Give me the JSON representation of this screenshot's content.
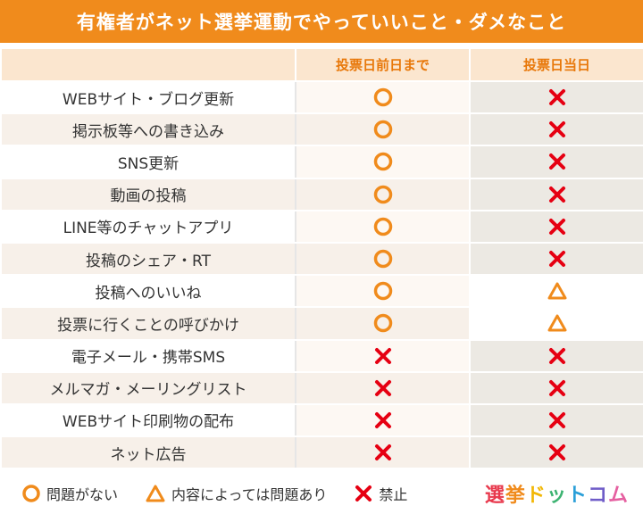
{
  "title": "有権者がネット選挙運動でやっていいこと・ダメなこと",
  "columns": {
    "item": "",
    "before": "投票日前日まで",
    "day": "投票日当日"
  },
  "rows": [
    {
      "label": "WEBサイト・ブログ更新",
      "before": "ok",
      "day": "ng"
    },
    {
      "label": "掲示板等への書き込み",
      "before": "ok",
      "day": "ng"
    },
    {
      "label": "SNS更新",
      "before": "ok",
      "day": "ng"
    },
    {
      "label": "動画の投稿",
      "before": "ok",
      "day": "ng"
    },
    {
      "label": "LINE等のチャットアプリ",
      "before": "ok",
      "day": "ng"
    },
    {
      "label": "投稿のシェア・RT",
      "before": "ok",
      "day": "ng"
    },
    {
      "label": "投稿へのいいね",
      "before": "ok",
      "day": "partial"
    },
    {
      "label": "投票に行くことの呼びかけ",
      "before": "ok",
      "day": "partial"
    },
    {
      "label": "電子メール・携帯SMS",
      "before": "ng",
      "day": "ng"
    },
    {
      "label": "メルマガ・メーリングリスト",
      "before": "ng",
      "day": "ng"
    },
    {
      "label": "WEBサイト印刷物の配布",
      "before": "ng",
      "day": "ng"
    },
    {
      "label": "ネット広告",
      "before": "ng",
      "day": "ng"
    }
  ],
  "legend": {
    "ok_label": "問題がない",
    "partial_label": "内容によっては問題あり",
    "ng_label": "禁止"
  },
  "logo": {
    "text": "選挙ドットコム",
    "chars": [
      "選",
      "挙",
      "ド",
      "ッ",
      "ト",
      "コ",
      "ム"
    ],
    "colors": [
      "#e8394d",
      "#f08b1c",
      "#f2b705",
      "#3cb371",
      "#2a9fd8",
      "#6f5cc8",
      "#e55fa0"
    ]
  },
  "colors": {
    "accent": "#f08b1c",
    "ok_mark": "#f08b1c",
    "partial_mark": "#f08b1c",
    "ng_mark": "#e60012"
  },
  "icons": {
    "ok": "circle-icon",
    "partial": "triangle-icon",
    "ng": "cross-icon"
  }
}
